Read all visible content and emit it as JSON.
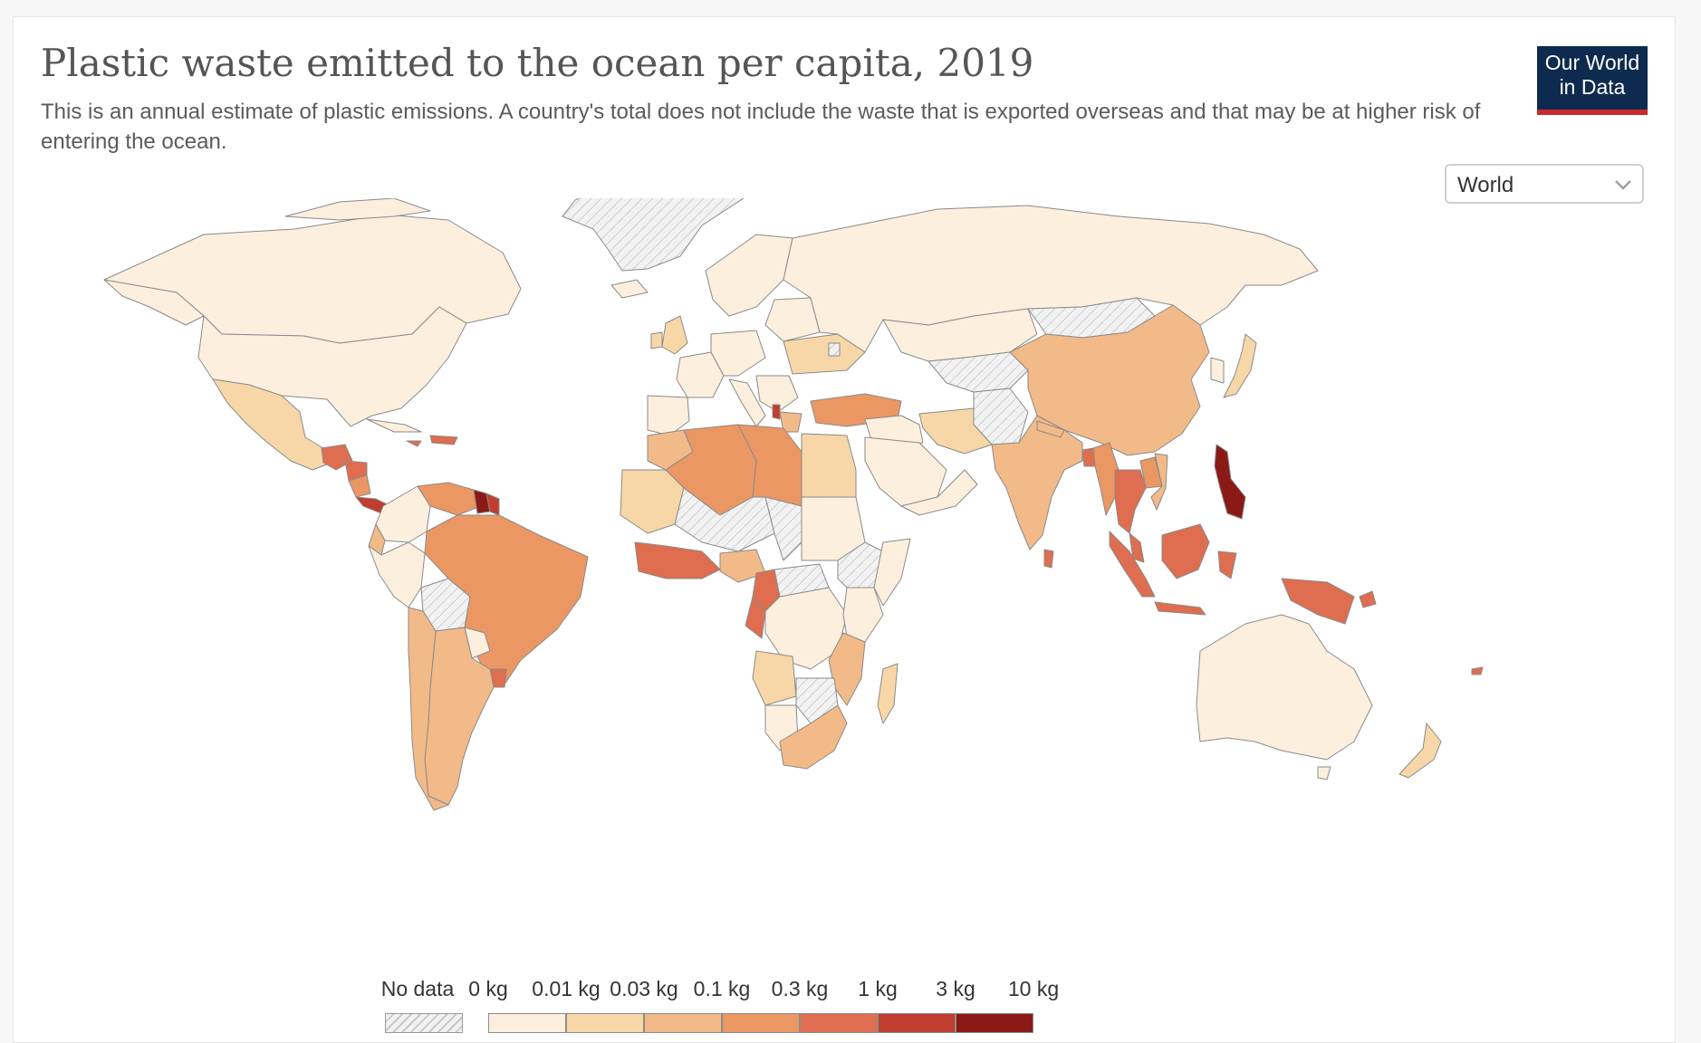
{
  "header": {
    "title": "Plastic waste emitted to the ocean per capita, 2019",
    "subtitle": "This is an annual estimate of plastic emissions. A country's total does not include the waste that is exported overseas and that may be at higher risk of entering the ocean."
  },
  "logo": {
    "line1": "Our World",
    "line2": "in Data"
  },
  "region_selector": {
    "selected": "World",
    "icon": "chevron-down-icon"
  },
  "legend": {
    "no_data_label": "No data",
    "tick_labels": [
      "0 kg",
      "0.01 kg",
      "0.03 kg",
      "0.1 kg",
      "0.3 kg",
      "1 kg",
      "3 kg",
      "10 kg"
    ],
    "bin_colors": [
      "#fdefde",
      "#f7d7a8",
      "#f2ba88",
      "#eb9763",
      "#de6e4f",
      "#c13d2f",
      "#8b1a17"
    ]
  },
  "colors": {
    "no_data_fill": "#f2f2f2",
    "no_data_hatch": "#c9c9c9",
    "border": "#8a8a8a",
    "logo_bg": "#0e2a4e",
    "logo_accent": "#c8292d"
  },
  "map_data": {
    "projection": "world",
    "unit": "kg per capita"
  }
}
